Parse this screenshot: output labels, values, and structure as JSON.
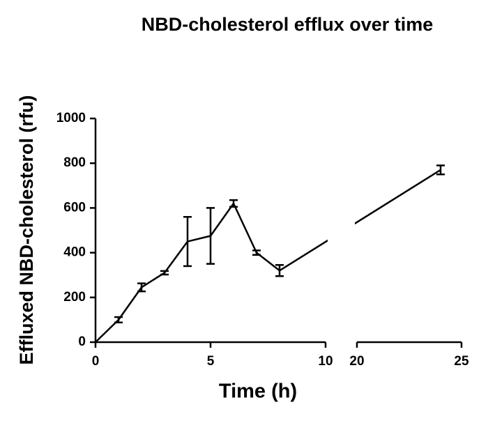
{
  "chart_data": {
    "type": "line",
    "title": "NBD-cholesterol efflux over time",
    "x_label": "Time (h)",
    "y_label": "Effluxed NBD-cholesterol (rfu)",
    "x": [
      0,
      1,
      2,
      3,
      4,
      5,
      6,
      7,
      8,
      24
    ],
    "series": [
      {
        "color": "#000000",
        "values": [
          0,
          100,
          245,
          310,
          450,
          475,
          620,
          400,
          320,
          770
        ],
        "errors": [
          null,
          12,
          18,
          8,
          110,
          125,
          15,
          10,
          25,
          20
        ]
      }
    ],
    "x_segments": [
      {
        "xlim": [
          0,
          10
        ],
        "xticks": [
          0,
          5,
          10
        ]
      },
      {
        "xlim": [
          20,
          25
        ],
        "xticks": [
          20,
          25
        ]
      }
    ],
    "ylim": [
      0,
      1000
    ],
    "yticks": [
      0,
      200,
      400,
      600,
      800,
      1000
    ]
  }
}
